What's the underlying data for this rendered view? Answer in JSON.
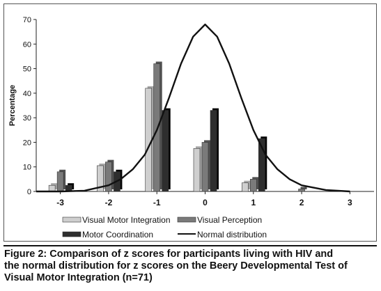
{
  "chart_data": {
    "type": "bar",
    "ylabel": "Percentage",
    "xlabel": "",
    "ylim": [
      0,
      70
    ],
    "y_ticks": [
      "0",
      "10",
      "20",
      "30",
      "40",
      "50",
      "60",
      "70"
    ],
    "categories": [
      "-3",
      "-2",
      "-1",
      "0",
      "1",
      "2",
      "3"
    ],
    "series": [
      {
        "name": "Visual Motor Integration",
        "values": [
          2.5,
          10.5,
          42,
          17.5,
          3.5,
          0,
          0
        ],
        "color": "#cfcfcf"
      },
      {
        "name": "Visual Perception",
        "values": [
          8,
          12,
          52,
          20,
          5,
          1,
          0
        ],
        "color": "#7a7a7a"
      },
      {
        "name": "Motor Coordination",
        "values": [
          2.5,
          8,
          33,
          33,
          21.5,
          0,
          0
        ],
        "color": "#2e2e2e"
      }
    ],
    "line": {
      "name": "Normal distribution",
      "x": [
        -3.5,
        -3,
        -2.5,
        -2,
        -1.75,
        -1.5,
        -1.25,
        -1,
        -0.75,
        -0.5,
        -0.25,
        0,
        0.25,
        0.5,
        0.75,
        1,
        1.25,
        1.5,
        1.75,
        2,
        2.5,
        3
      ],
      "y": [
        0,
        0,
        0.3,
        2.5,
        5,
        9,
        15,
        25,
        38,
        52,
        63,
        68,
        63,
        52,
        38,
        25,
        15,
        9,
        5,
        2.5,
        0.6,
        0
      ]
    },
    "grid": false,
    "legend_position": "bottom"
  },
  "caption": {
    "lines": [
      "Figure 2: Comparison of z scores for participants living with HIV and",
      "the normal distribution for z scores on the Beery Developmental Test of",
      "Visual Motor Integration (n=71)"
    ]
  }
}
